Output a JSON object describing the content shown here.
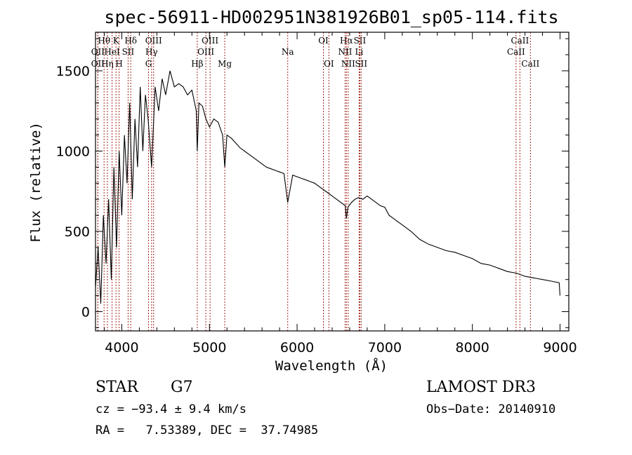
{
  "chart_data": {
    "type": "line",
    "title": "spec-56911-HD002951N381926B01_sp05-114.fits",
    "xlabel": "Wavelength (Å)",
    "ylabel": "Flux (relative)",
    "xlim": [
      3700,
      9100
    ],
    "ylim": [
      -120,
      1740
    ],
    "xticks": [
      4000,
      5000,
      6000,
      7000,
      8000,
      9000
    ],
    "yticks": [
      0,
      500,
      1000,
      1500
    ],
    "series": [
      {
        "name": "flux",
        "x": [
          3700,
          3730,
          3760,
          3790,
          3820,
          3850,
          3880,
          3910,
          3940,
          3970,
          4000,
          4030,
          4060,
          4090,
          4120,
          4150,
          4180,
          4210,
          4240,
          4270,
          4300,
          4340,
          4380,
          4420,
          4460,
          4500,
          4550,
          4600,
          4650,
          4700,
          4750,
          4800,
          4850,
          4861,
          4880,
          4920,
          4960,
          5000,
          5050,
          5100,
          5150,
          5175,
          5200,
          5250,
          5300,
          5350,
          5400,
          5450,
          5500,
          5550,
          5600,
          5650,
          5700,
          5750,
          5800,
          5850,
          5893,
          5950,
          6000,
          6050,
          6100,
          6150,
          6200,
          6250,
          6300,
          6350,
          6400,
          6450,
          6500,
          6550,
          6563,
          6580,
          6620,
          6660,
          6700,
          6750,
          6800,
          6850,
          6900,
          6950,
          7000,
          7050,
          7100,
          7150,
          7200,
          7300,
          7400,
          7500,
          7600,
          7700,
          7800,
          7900,
          8000,
          8100,
          8200,
          8300,
          8400,
          8500,
          8600,
          8700,
          8800,
          8900,
          8990,
          9000
        ],
        "y": [
          150,
          400,
          50,
          600,
          300,
          700,
          200,
          900,
          400,
          1000,
          600,
          1100,
          800,
          1300,
          700,
          1200,
          900,
          1400,
          1000,
          1350,
          1200,
          900,
          1400,
          1250,
          1450,
          1350,
          1500,
          1400,
          1420,
          1400,
          1350,
          1380,
          1250,
          1000,
          1300,
          1280,
          1200,
          1150,
          1200,
          1180,
          1100,
          900,
          1100,
          1080,
          1050,
          1020,
          1000,
          980,
          960,
          940,
          920,
          900,
          890,
          880,
          870,
          860,
          680,
          850,
          840,
          830,
          820,
          810,
          800,
          780,
          760,
          740,
          720,
          700,
          680,
          660,
          580,
          650,
          680,
          700,
          710,
          700,
          720,
          700,
          680,
          660,
          650,
          600,
          580,
          560,
          540,
          500,
          450,
          420,
          400,
          380,
          370,
          350,
          330,
          300,
          290,
          270,
          250,
          240,
          220,
          210,
          200,
          190,
          180,
          100
        ]
      }
    ],
    "line_markers": [
      {
        "label": "Hθ",
        "wavelength": 3798,
        "row": 1
      },
      {
        "label": "OII",
        "wavelength": 3727,
        "row": 2
      },
      {
        "label": "OII",
        "wavelength": 3727,
        "row": 3
      },
      {
        "label": "Hη",
        "wavelength": 3835,
        "row": 3
      },
      {
        "label": "K",
        "wavelength": 3934,
        "row": 1
      },
      {
        "label": "HeI",
        "wavelength": 3889,
        "row": 2
      },
      {
        "label": "H",
        "wavelength": 3969,
        "row": 3
      },
      {
        "label": "SII",
        "wavelength": 4072,
        "row": 2
      },
      {
        "label": "Hδ",
        "wavelength": 4102,
        "row": 1
      },
      {
        "label": "OIII",
        "wavelength": 4363,
        "row": 1
      },
      {
        "label": "Hγ",
        "wavelength": 4340,
        "row": 2
      },
      {
        "label": "G",
        "wavelength": 4305,
        "row": 3
      },
      {
        "label": "OIII",
        "wavelength": 5007,
        "row": 1
      },
      {
        "label": "OIII",
        "wavelength": 4959,
        "row": 2
      },
      {
        "label": "Hβ",
        "wavelength": 4861,
        "row": 3
      },
      {
        "label": "Mg",
        "wavelength": 5175,
        "row": 3
      },
      {
        "label": "Na",
        "wavelength": 5893,
        "row": 2
      },
      {
        "label": "OI",
        "wavelength": 6300,
        "row": 1
      },
      {
        "label": "OI",
        "wavelength": 6363,
        "row": 3
      },
      {
        "label": "Hα",
        "wavelength": 6563,
        "row": 1
      },
      {
        "label": "SII",
        "wavelength": 6716,
        "row": 1
      },
      {
        "label": "NII",
        "wavelength": 6548,
        "row": 2
      },
      {
        "label": "Li",
        "wavelength": 6708,
        "row": 2
      },
      {
        "label": "NII",
        "wavelength": 6583,
        "row": 3
      },
      {
        "label": "SII",
        "wavelength": 6731,
        "row": 3
      },
      {
        "label": "CaII",
        "wavelength": 8542,
        "row": 1
      },
      {
        "label": "CaII",
        "wavelength": 8498,
        "row": 2
      },
      {
        "label": "CaII",
        "wavelength": 8662,
        "row": 3
      }
    ]
  },
  "info": {
    "object_type": "STAR",
    "subclass": "G7",
    "survey": "LAMOST DR3",
    "redshift": "cz = −93.4 ± 9.4 km/s",
    "obs_date": "Obs−Date: 20140910",
    "coords": "RA =   7.53389, DEC =  37.74985"
  },
  "colors": {
    "spectrum": "#000000",
    "marker": "#a0281e",
    "axes": "#000000"
  }
}
